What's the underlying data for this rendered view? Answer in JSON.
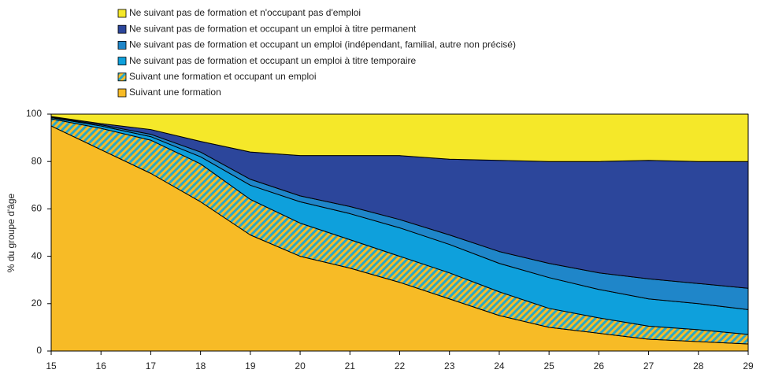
{
  "chart_data": {
    "type": "stacked_area",
    "y_label": "% du groupe d'âge",
    "x": [
      15,
      16,
      17,
      18,
      19,
      20,
      21,
      22,
      23,
      24,
      25,
      26,
      27,
      28,
      29
    ],
    "xlim": [
      15,
      29
    ],
    "xticks": [
      15,
      16,
      17,
      18,
      19,
      20,
      21,
      22,
      23,
      24,
      25,
      26,
      27,
      28,
      29
    ],
    "ylim": [
      0,
      100
    ],
    "yticks": [
      0,
      20,
      40,
      60,
      80,
      100
    ],
    "series": [
      {
        "name": "Suivant une formation",
        "color": "#f7bb26",
        "values": [
          95,
          85,
          75,
          63,
          49,
          40,
          35,
          29,
          22,
          15,
          10,
          7.5,
          5,
          4,
          3
        ]
      },
      {
        "name": "Suivant une formation et occupant un emploi",
        "color": "#2ba8c8",
        "hatch_color": "#f7bb26",
        "values": [
          3,
          9,
          14,
          16,
          15,
          14,
          12,
          11,
          11,
          10,
          8,
          6.5,
          5.5,
          5,
          4
        ]
      },
      {
        "name": "Ne suivant pas de formation et occupant un emploi à titre temporaire",
        "color": "#0ea0dc",
        "values": [
          0.5,
          1,
          1.5,
          3,
          6,
          9,
          11,
          12,
          12,
          12,
          13,
          12,
          11.5,
          11,
          10.5
        ]
      },
      {
        "name": "Ne suivant pas de formation et occupant un emploi (indépendant, familial, autre non précisé)",
        "color": "#1f86c9",
        "values": [
          0.2,
          0.5,
          1,
          2,
          2.5,
          2.5,
          3,
          3.5,
          4,
          5,
          6,
          7,
          8.5,
          8.5,
          9
        ]
      },
      {
        "name": "Ne suivant pas de formation et occupant un emploi à titre permanent",
        "color": "#2c469b",
        "values": [
          0.3,
          0.5,
          2,
          4.5,
          11.5,
          17,
          21.5,
          27,
          32,
          38.5,
          43,
          47,
          50,
          51.5,
          53.5
        ]
      },
      {
        "name": "Ne suivant pas de formation et n'occupant pas d'emploi",
        "color": "#f5e829",
        "values": [
          1,
          4,
          6.5,
          11.5,
          16,
          17.5,
          17.5,
          17.5,
          19,
          19.5,
          20,
          20,
          19.5,
          20,
          20
        ]
      }
    ]
  }
}
